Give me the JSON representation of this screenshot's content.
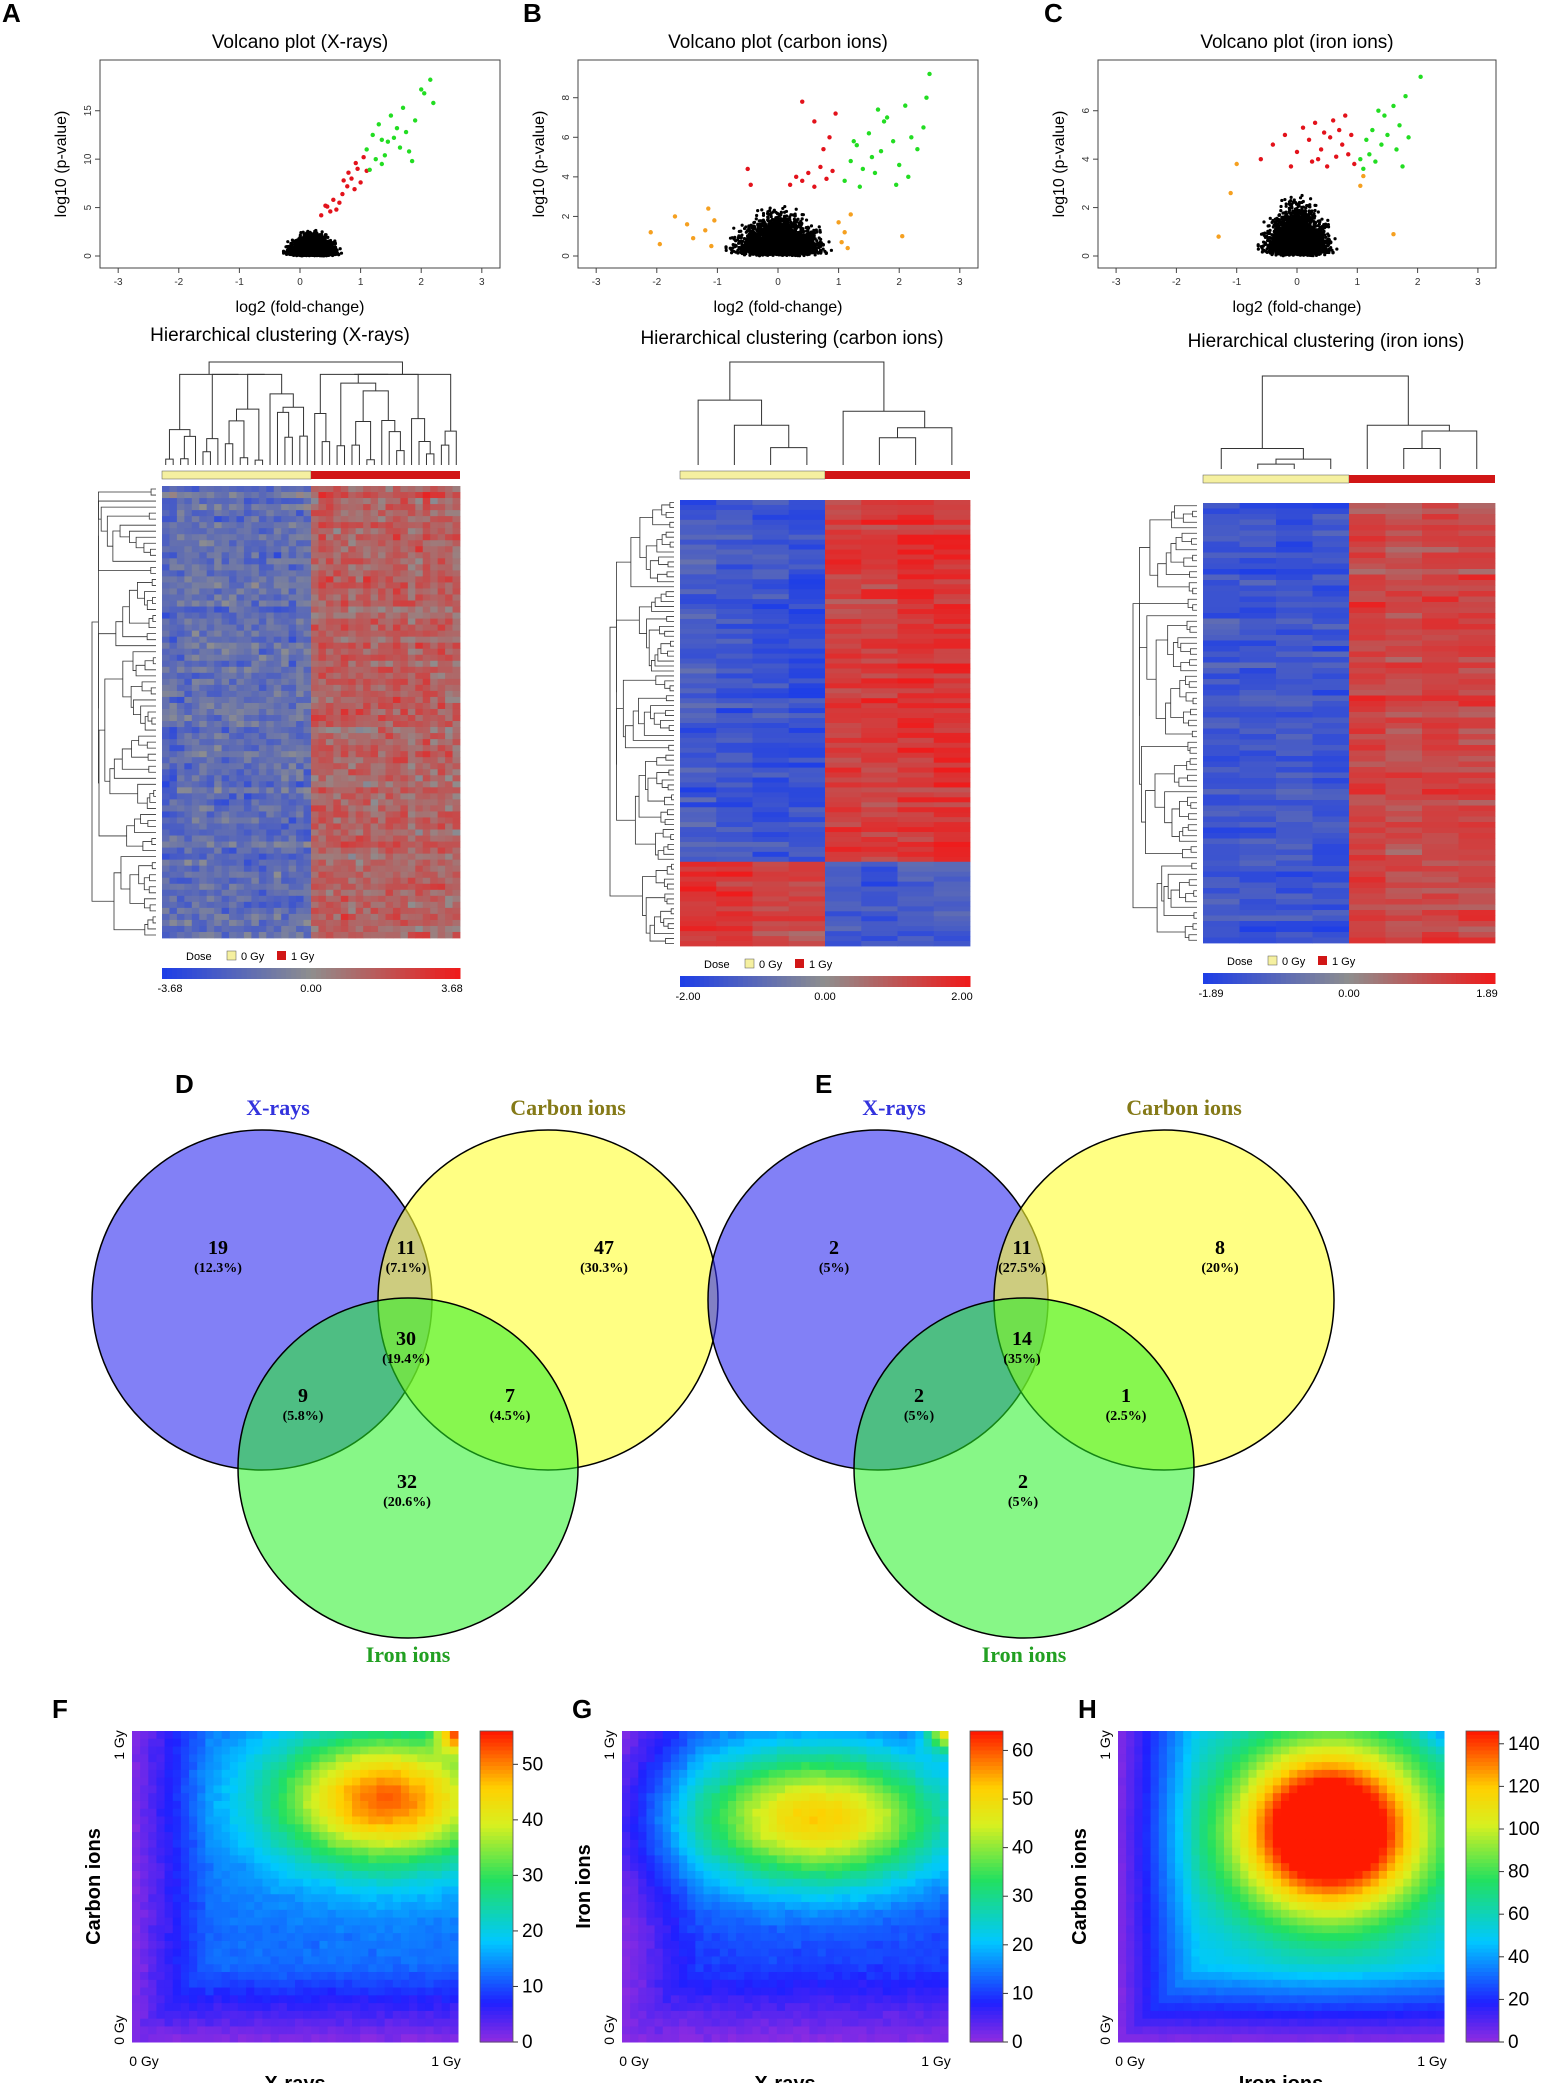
{
  "panels": {
    "A": "A",
    "B": "B",
    "C": "C",
    "D": "D",
    "E": "E",
    "F": "F",
    "G": "G",
    "H": "H"
  },
  "chart_data": [
    {
      "id": "A-volcano",
      "type": "scatter",
      "title": "Volcano plot (X-rays)",
      "xlabel": "log2 (fold-change)",
      "ylabel": "log10 (p-value)",
      "xlim": [
        -3.3,
        3.3
      ],
      "ylim": [
        0,
        19
      ],
      "xticks": [
        "-3",
        "-2",
        "-1",
        "0",
        "1",
        "2",
        "3"
      ],
      "yticks": [
        "0",
        "5",
        "10",
        "15"
      ],
      "ytick_values": [
        0,
        5,
        10,
        15
      ],
      "colors": {
        "ns": "#000000",
        "up_mid": "#e3121b",
        "up_high": "#22dd22",
        "down": "#f5a020"
      },
      "cloud": {
        "x_center": 0.2,
        "x_spread": 0.55,
        "max_y": 3.6
      },
      "red_points": [
        [
          0.35,
          4.2
        ],
        [
          0.45,
          5.1
        ],
        [
          0.55,
          5.8
        ],
        [
          0.6,
          4.8
        ],
        [
          0.7,
          6.4
        ],
        [
          0.78,
          7.2
        ],
        [
          0.85,
          8.0
        ],
        [
          0.9,
          6.9
        ],
        [
          0.95,
          9.0
        ],
        [
          1.0,
          7.6
        ],
        [
          1.05,
          10.2
        ],
        [
          0.65,
          5.5
        ],
        [
          0.5,
          4.6
        ],
        [
          0.8,
          8.6
        ],
        [
          1.1,
          8.8
        ],
        [
          0.72,
          7.8
        ],
        [
          0.92,
          9.6
        ],
        [
          0.42,
          5.2
        ]
      ],
      "green_points": [
        [
          1.1,
          11.0
        ],
        [
          1.2,
          12.5
        ],
        [
          1.25,
          10.0
        ],
        [
          1.3,
          13.6
        ],
        [
          1.35,
          9.5
        ],
        [
          1.45,
          11.8
        ],
        [
          1.5,
          14.5
        ],
        [
          1.55,
          12.2
        ],
        [
          1.6,
          13.2
        ],
        [
          1.7,
          15.3
        ],
        [
          1.75,
          12.8
        ],
        [
          1.8,
          10.8
        ],
        [
          1.9,
          14.0
        ],
        [
          2.0,
          17.2
        ],
        [
          2.05,
          16.8
        ],
        [
          2.15,
          18.2
        ],
        [
          2.2,
          15.8
        ],
        [
          1.4,
          10.4
        ],
        [
          1.65,
          11.2
        ],
        [
          1.85,
          9.8
        ],
        [
          1.15,
          8.9
        ],
        [
          1.35,
          12.0
        ]
      ],
      "orange_points": []
    },
    {
      "id": "B-volcano",
      "type": "scatter",
      "title": "Volcano plot (carbon ions)",
      "xlabel": "log2 (fold-change)",
      "ylabel": "log10 (p-value)",
      "xlim": [
        -3.3,
        3.3
      ],
      "ylim": [
        0,
        9.3
      ],
      "xticks": [
        "-3",
        "-2",
        "-1",
        "0",
        "1",
        "2",
        "3"
      ],
      "yticks": [
        "0",
        "2",
        "4",
        "6",
        "8"
      ],
      "ytick_values": [
        0,
        2,
        4,
        6,
        8
      ],
      "colors": {
        "ns": "#000000",
        "up_mid": "#e3121b",
        "up_high": "#22dd22",
        "down": "#f5a020"
      },
      "cloud": {
        "x_center": 0.0,
        "x_spread": 1.0,
        "max_y": 3.4
      },
      "red_points": [
        [
          -0.5,
          4.4
        ],
        [
          -0.45,
          3.6
        ],
        [
          0.4,
          3.8
        ],
        [
          0.5,
          4.2
        ],
        [
          0.6,
          3.5
        ],
        [
          0.7,
          4.5
        ],
        [
          0.8,
          3.9
        ],
        [
          0.9,
          4.3
        ],
        [
          0.75,
          5.4
        ],
        [
          0.85,
          6.0
        ],
        [
          0.6,
          6.8
        ],
        [
          0.4,
          7.8
        ],
        [
          0.95,
          7.2
        ],
        [
          0.3,
          4.0
        ],
        [
          0.2,
          3.6
        ]
      ],
      "green_points": [
        [
          1.1,
          3.8
        ],
        [
          1.2,
          4.8
        ],
        [
          1.3,
          5.6
        ],
        [
          1.35,
          3.5
        ],
        [
          1.4,
          4.4
        ],
        [
          1.5,
          6.2
        ],
        [
          1.55,
          5.0
        ],
        [
          1.6,
          4.2
        ],
        [
          1.7,
          5.3
        ],
        [
          1.75,
          6.8
        ],
        [
          1.8,
          7.0
        ],
        [
          1.9,
          5.8
        ],
        [
          2.0,
          4.6
        ],
        [
          2.1,
          7.6
        ],
        [
          2.2,
          6.0
        ],
        [
          2.3,
          5.4
        ],
        [
          2.4,
          6.5
        ],
        [
          2.5,
          9.2
        ],
        [
          2.45,
          8.0
        ],
        [
          1.65,
          7.4
        ],
        [
          1.25,
          5.8
        ],
        [
          2.15,
          4.0
        ],
        [
          1.95,
          3.6
        ]
      ],
      "orange_points": [
        [
          -2.1,
          1.2
        ],
        [
          -1.95,
          0.6
        ],
        [
          -1.7,
          2.0
        ],
        [
          -1.5,
          1.6
        ],
        [
          -1.4,
          0.9
        ],
        [
          -1.2,
          1.3
        ],
        [
          -1.1,
          0.5
        ],
        [
          -1.05,
          1.8
        ],
        [
          -1.15,
          2.4
        ],
        [
          1.05,
          0.7
        ],
        [
          1.1,
          1.2
        ],
        [
          1.15,
          0.4
        ],
        [
          1.0,
          1.7
        ],
        [
          1.2,
          2.1
        ],
        [
          2.05,
          1.0
        ]
      ]
    },
    {
      "id": "C-volcano",
      "type": "scatter",
      "title": "Volcano plot (iron ions)",
      "xlabel": "log2 (fold-change)",
      "ylabel": "log10 (p-value)",
      "xlim": [
        -3.3,
        3.3
      ],
      "ylim": [
        0,
        7.6
      ],
      "xticks": [
        "-3",
        "-2",
        "-1",
        "0",
        "1",
        "2",
        "3"
      ],
      "yticks": [
        "0",
        "2",
        "4",
        "6"
      ],
      "ytick_values": [
        0,
        2,
        4,
        6
      ],
      "colors": {
        "ns": "#000000",
        "up_mid": "#e3121b",
        "up_high": "#22dd22",
        "down": "#f5a020"
      },
      "cloud": {
        "x_center": 0.0,
        "x_spread": 0.75,
        "max_y": 3.4
      },
      "red_points": [
        [
          -0.6,
          4.0
        ],
        [
          -0.4,
          4.6
        ],
        [
          -0.2,
          5.0
        ],
        [
          0.0,
          4.3
        ],
        [
          0.1,
          5.3
        ],
        [
          0.2,
          4.8
        ],
        [
          0.25,
          3.9
        ],
        [
          0.3,
          5.5
        ],
        [
          0.4,
          4.4
        ],
        [
          0.45,
          5.1
        ],
        [
          0.5,
          3.7
        ],
        [
          0.55,
          4.9
        ],
        [
          0.6,
          5.6
        ],
        [
          0.65,
          4.1
        ],
        [
          0.7,
          5.2
        ],
        [
          0.75,
          4.6
        ],
        [
          0.8,
          5.8
        ],
        [
          0.85,
          4.2
        ],
        [
          0.9,
          5.0
        ],
        [
          0.95,
          3.8
        ],
        [
          -0.1,
          3.7
        ],
        [
          0.35,
          4.0
        ]
      ],
      "green_points": [
        [
          1.05,
          4.0
        ],
        [
          1.1,
          3.6
        ],
        [
          1.15,
          4.8
        ],
        [
          1.2,
          4.2
        ],
        [
          1.25,
          5.2
        ],
        [
          1.3,
          3.9
        ],
        [
          1.4,
          4.6
        ],
        [
          1.45,
          5.8
        ],
        [
          1.5,
          5.0
        ],
        [
          1.6,
          6.2
        ],
        [
          1.65,
          4.4
        ],
        [
          1.7,
          5.4
        ],
        [
          1.75,
          3.7
        ],
        [
          1.8,
          6.6
        ],
        [
          1.85,
          4.9
        ],
        [
          2.05,
          7.4
        ],
        [
          1.35,
          6.0
        ]
      ],
      "orange_points": [
        [
          -1.3,
          0.8
        ],
        [
          -1.1,
          2.6
        ],
        [
          -1.0,
          3.8
        ],
        [
          1.05,
          2.9
        ],
        [
          1.1,
          3.3
        ],
        [
          1.6,
          0.9
        ]
      ]
    },
    {
      "id": "A-heatmap",
      "type": "heatmap",
      "title": "Hierarchical clustering (X-rays)",
      "columns": 40,
      "rows": 75,
      "groups": [
        "0 Gy",
        "1 Gy"
      ],
      "legend_label": "Dose",
      "scale": [
        "-3.68",
        "0.00",
        "3.68"
      ],
      "colors": {
        "low": "#1f3fe6",
        "mid": "#8e8e8e",
        "high": "#ee1c1c",
        "group0": "#f5f0a0",
        "group1": "#d11616"
      }
    },
    {
      "id": "B-heatmap",
      "type": "heatmap",
      "title": "Hierarchical clustering (carbon ions)",
      "columns": 8,
      "rows": 90,
      "groups": [
        "0 Gy",
        "1 Gy"
      ],
      "legend_label": "Dose",
      "scale": [
        "-2.00",
        "0.00",
        "2.00"
      ],
      "colors": {
        "low": "#1f3fe6",
        "mid": "#8e8e8e",
        "high": "#ee1c1c",
        "group0": "#f5f0a0",
        "group1": "#d11616"
      }
    },
    {
      "id": "C-heatmap",
      "type": "heatmap",
      "title": "Hierarchical clustering (iron ions)",
      "columns": 8,
      "rows": 80,
      "groups": [
        "0 Gy",
        "1 Gy"
      ],
      "legend_label": "Dose",
      "scale": [
        "-1.89",
        "0.00",
        "1.89"
      ],
      "colors": {
        "low": "#1f3fe6",
        "mid": "#8e8e8e",
        "high": "#ee1c1c",
        "group0": "#f5f0a0",
        "group1": "#d11616"
      }
    },
    {
      "id": "D-venn",
      "type": "venn",
      "sets": [
        "X-rays",
        "Carbon ions",
        "Iron ions"
      ],
      "set_colors": [
        "#3333dd",
        "#857a18",
        "#22a022"
      ],
      "regions": {
        "x_only": {
          "n": "19",
          "pct": "(12.3%)"
        },
        "xc": {
          "n": "11",
          "pct": "(7.1%)"
        },
        "c_only": {
          "n": "47",
          "pct": "(30.3%)"
        },
        "xci": {
          "n": "30",
          "pct": "(19.4%)"
        },
        "xi": {
          "n": "9",
          "pct": "(5.8%)"
        },
        "ci": {
          "n": "7",
          "pct": "(4.5%)"
        },
        "i_only": {
          "n": "32",
          "pct": "(20.6%)"
        }
      }
    },
    {
      "id": "E-venn",
      "type": "venn",
      "sets": [
        "X-rays",
        "Carbon ions",
        "Iron ions"
      ],
      "set_colors": [
        "#3333dd",
        "#857a18",
        "#22a022"
      ],
      "regions": {
        "x_only": {
          "n": "2",
          "pct": "(5%)"
        },
        "xc": {
          "n": "11",
          "pct": "(27.5%)"
        },
        "c_only": {
          "n": "8",
          "pct": "(20%)"
        },
        "xci": {
          "n": "14",
          "pct": "(35%)"
        },
        "xi": {
          "n": "2",
          "pct": "(5%)"
        },
        "ci": {
          "n": "1",
          "pct": "(2.5%)"
        },
        "i_only": {
          "n": "2",
          "pct": "(5%)"
        }
      }
    },
    {
      "id": "F-rrho",
      "type": "heatmap",
      "xlabel": "X-rays",
      "ylabel": "Carbon ions",
      "x_ticks": [
        "0 Gy",
        "1 Gy"
      ],
      "y_ticks": [
        "0 Gy",
        "1 Gy"
      ],
      "colorbar_ticks": [
        0,
        10,
        20,
        30,
        40,
        50
      ],
      "colorbar_max": 56,
      "hot_spot": [
        0.78,
        0.78
      ],
      "hot_value": 40,
      "corner_value": 56
    },
    {
      "id": "G-rrho",
      "type": "heatmap",
      "xlabel": "X-rays",
      "ylabel": "Iron ions",
      "x_ticks": [
        "0 Gy",
        "1 Gy"
      ],
      "y_ticks": [
        "0 Gy",
        "1 Gy"
      ],
      "colorbar_ticks": [
        0,
        10,
        20,
        30,
        40,
        50,
        60
      ],
      "colorbar_max": 64,
      "hot_spot": [
        0.6,
        0.72
      ],
      "hot_value": 42,
      "corner_value": 62
    },
    {
      "id": "H-rrho",
      "type": "heatmap",
      "xlabel": "Iron ions",
      "ylabel": "Carbon ions",
      "x_ticks": [
        "0 Gy",
        "1 Gy"
      ],
      "y_ticks": [
        "0 Gy",
        "1 Gy"
      ],
      "colorbar_ticks": [
        0,
        20,
        40,
        60,
        80,
        100,
        120,
        140
      ],
      "colorbar_max": 146,
      "hot_spot": [
        0.65,
        0.68
      ],
      "hot_value": 140,
      "corner_value": 70
    }
  ]
}
